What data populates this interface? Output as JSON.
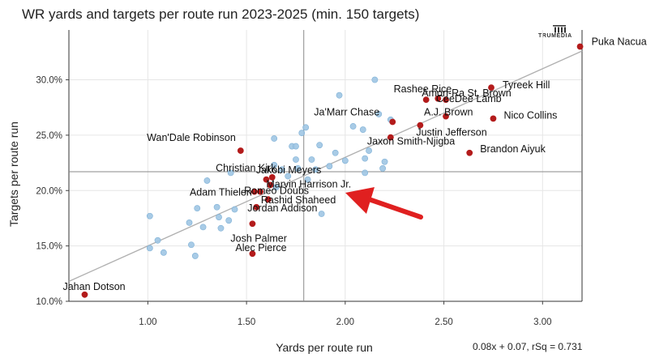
{
  "chart_data": {
    "type": "scatter",
    "title": "WR yards and targets per route run 2023-2025 (min. 150 targets)",
    "logo_text": "TRUMEDIA",
    "xlabel": "Yards per route run",
    "ylabel": "Targets per route run",
    "xlim": [
      0.6,
      3.2
    ],
    "ylim": [
      0.1,
      0.345
    ],
    "xticks": [
      {
        "value": 1.0,
        "label": "1.00"
      },
      {
        "value": 1.5,
        "label": "1.50"
      },
      {
        "value": 2.0,
        "label": "2.00"
      },
      {
        "value": 2.5,
        "label": "2.50"
      },
      {
        "value": 3.0,
        "label": "3.00"
      }
    ],
    "yticks": [
      {
        "value": 0.1,
        "label": "10.0%"
      },
      {
        "value": 0.15,
        "label": "15.0%"
      },
      {
        "value": 0.2,
        "label": "20.0%"
      },
      {
        "value": 0.25,
        "label": "25.0%"
      },
      {
        "value": 0.3,
        "label": "30.0%"
      }
    ],
    "grid": true,
    "mean_lines": {
      "x": 1.79,
      "y": 0.217
    },
    "trendline": {
      "slope": 0.08,
      "intercept": 0.07,
      "label": "0.08x + 0.07, rSq = 0.731"
    },
    "highlight_color": "#b31b1b",
    "other_color": "#9ec5e3",
    "arrow_color": "#e02020",
    "highlighted": [
      {
        "name": "Puka Nacua",
        "x": 3.19,
        "y": 0.33
      },
      {
        "name": "Tyreek Hill",
        "x": 2.74,
        "y": 0.293
      },
      {
        "name": "Rashee Rice",
        "x": 2.41,
        "y": 0.282
      },
      {
        "name": "Amon-Ra St. Brown",
        "x": 2.47,
        "y": 0.283
      },
      {
        "name": "CeeDee Lamb",
        "x": 2.51,
        "y": 0.282
      },
      {
        "name": "A.J. Brown",
        "x": 2.51,
        "y": 0.267
      },
      {
        "name": "Nico Collins",
        "x": 2.75,
        "y": 0.265
      },
      {
        "name": "Ja'Marr Chase",
        "x": 2.24,
        "y": 0.262
      },
      {
        "name": "Justin Jefferson",
        "x": 2.38,
        "y": 0.259
      },
      {
        "name": "Jaxon Smith-Njigba",
        "x": 2.23,
        "y": 0.248
      },
      {
        "name": "Brandon Aiyuk",
        "x": 2.63,
        "y": 0.234
      },
      {
        "name": "Wan'Dale Robinson",
        "x": 1.47,
        "y": 0.236
      },
      {
        "name": "Christian Kirk",
        "x": 1.6,
        "y": 0.21
      },
      {
        "name": "Jakobi Meyers",
        "x": 1.63,
        "y": 0.212
      },
      {
        "name": "Marvin Harrison Jr.",
        "x": 1.62,
        "y": 0.205
      },
      {
        "name": "Romeo Doubs",
        "x": 1.57,
        "y": 0.199
      },
      {
        "name": "Adam Thielen",
        "x": 1.54,
        "y": 0.199
      },
      {
        "name": "Rashid Shaheed",
        "x": 1.61,
        "y": 0.192
      },
      {
        "name": "Jordan Addison",
        "x": 1.55,
        "y": 0.185
      },
      {
        "name": "Josh Palmer",
        "x": 1.53,
        "y": 0.17
      },
      {
        "name": "Alec Pierce",
        "x": 1.53,
        "y": 0.143
      },
      {
        "name": "Jahan Dotson",
        "x": 0.68,
        "y": 0.106
      }
    ],
    "others": [
      {
        "x": 1.01,
        "y": 0.177
      },
      {
        "x": 1.01,
        "y": 0.148
      },
      {
        "x": 1.05,
        "y": 0.155
      },
      {
        "x": 1.08,
        "y": 0.144
      },
      {
        "x": 1.21,
        "y": 0.171
      },
      {
        "x": 1.22,
        "y": 0.151
      },
      {
        "x": 1.24,
        "y": 0.141
      },
      {
        "x": 1.25,
        "y": 0.184
      },
      {
        "x": 1.28,
        "y": 0.167
      },
      {
        "x": 1.3,
        "y": 0.209
      },
      {
        "x": 1.35,
        "y": 0.185
      },
      {
        "x": 1.36,
        "y": 0.176
      },
      {
        "x": 1.37,
        "y": 0.166
      },
      {
        "x": 1.41,
        "y": 0.173
      },
      {
        "x": 1.42,
        "y": 0.216
      },
      {
        "x": 1.44,
        "y": 0.183
      },
      {
        "x": 1.64,
        "y": 0.247
      },
      {
        "x": 1.64,
        "y": 0.223
      },
      {
        "x": 1.65,
        "y": 0.203
      },
      {
        "x": 1.68,
        "y": 0.219
      },
      {
        "x": 1.71,
        "y": 0.213
      },
      {
        "x": 1.73,
        "y": 0.24
      },
      {
        "x": 1.75,
        "y": 0.24
      },
      {
        "x": 1.75,
        "y": 0.228
      },
      {
        "x": 1.76,
        "y": 0.22
      },
      {
        "x": 1.78,
        "y": 0.252
      },
      {
        "x": 1.8,
        "y": 0.257
      },
      {
        "x": 1.81,
        "y": 0.21
      },
      {
        "x": 1.83,
        "y": 0.228
      },
      {
        "x": 1.85,
        "y": 0.219
      },
      {
        "x": 1.87,
        "y": 0.241
      },
      {
        "x": 1.88,
        "y": 0.179
      },
      {
        "x": 1.92,
        "y": 0.222
      },
      {
        "x": 1.95,
        "y": 0.234
      },
      {
        "x": 1.97,
        "y": 0.286
      },
      {
        "x": 2.0,
        "y": 0.227
      },
      {
        "x": 2.04,
        "y": 0.258
      },
      {
        "x": 2.09,
        "y": 0.255
      },
      {
        "x": 2.1,
        "y": 0.229
      },
      {
        "x": 2.1,
        "y": 0.216
      },
      {
        "x": 2.12,
        "y": 0.236
      },
      {
        "x": 2.15,
        "y": 0.3
      },
      {
        "x": 2.17,
        "y": 0.269
      },
      {
        "x": 2.19,
        "y": 0.22
      },
      {
        "x": 2.2,
        "y": 0.226
      },
      {
        "x": 2.23,
        "y": 0.264
      }
    ]
  }
}
